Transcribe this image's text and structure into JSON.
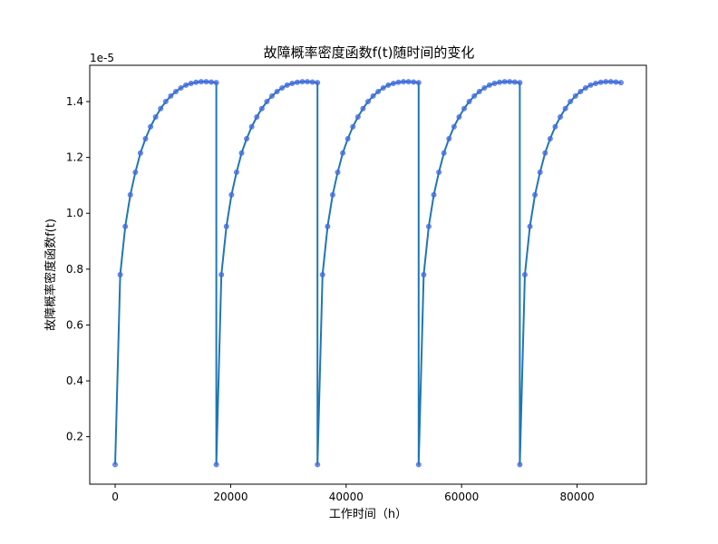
{
  "chart_data": {
    "type": "line",
    "title": "故障概率密度函数f(t)随时间的变化",
    "xlabel": "工作时间（h）",
    "ylabel": "故障概率密度函数f(t)",
    "offset_text": "1e-5",
    "xlim": [
      -4400,
      92000
    ],
    "ylim": [
      0.03,
      1.53
    ],
    "x_ticks": [
      0,
      20000,
      40000,
      60000,
      80000
    ],
    "x_tick_labels": [
      "0",
      "20000",
      "40000",
      "60000",
      "80000"
    ],
    "y_ticks": [
      0.2,
      0.4,
      0.6,
      0.8,
      1.0,
      1.2,
      1.4
    ],
    "y_tick_labels": [
      "0.2",
      "0.4",
      "0.6",
      "0.8",
      "1.0",
      "1.2",
      "1.4"
    ],
    "grid": false,
    "line_color": "#1f77b4",
    "marker_color": "#4169e1",
    "cycles": [
      {
        "x": [
          0,
          876,
          1752,
          2628,
          3504,
          4380,
          5256,
          6132,
          7008,
          7884,
          8760,
          9636,
          10512,
          11388,
          12264,
          13140,
          14016,
          14892,
          15768,
          16644,
          17520
        ],
        "y": [
          0.1,
          0.78,
          0.953,
          1.066,
          1.147,
          1.216,
          1.267,
          1.31,
          1.345,
          1.375,
          1.4,
          1.42,
          1.436,
          1.449,
          1.459,
          1.465,
          1.469,
          1.471,
          1.471,
          1.47,
          1.468
        ]
      },
      {
        "x": [
          17520,
          18396,
          19272,
          20148,
          21024,
          21900,
          22776,
          23652,
          24528,
          25404,
          26280,
          27156,
          28032,
          28908,
          29784,
          30660,
          31536,
          32412,
          33288,
          34164,
          35040
        ],
        "y": [
          0.1,
          0.78,
          0.953,
          1.066,
          1.147,
          1.216,
          1.267,
          1.31,
          1.345,
          1.375,
          1.4,
          1.42,
          1.436,
          1.449,
          1.459,
          1.465,
          1.469,
          1.471,
          1.471,
          1.47,
          1.468
        ]
      },
      {
        "x": [
          35040,
          35916,
          36792,
          37668,
          38544,
          39420,
          40296,
          41172,
          42048,
          42924,
          43800,
          44676,
          45552,
          46428,
          47304,
          48180,
          49056,
          49932,
          50808,
          51684,
          52560
        ],
        "y": [
          0.1,
          0.78,
          0.953,
          1.066,
          1.147,
          1.216,
          1.267,
          1.31,
          1.345,
          1.375,
          1.4,
          1.42,
          1.436,
          1.449,
          1.459,
          1.465,
          1.469,
          1.471,
          1.471,
          1.47,
          1.468
        ]
      },
      {
        "x": [
          52560,
          53436,
          54312,
          55188,
          56064,
          56940,
          57816,
          58692,
          59568,
          60444,
          61320,
          62196,
          63072,
          63948,
          64824,
          65700,
          66576,
          67452,
          68328,
          69204,
          70080
        ],
        "y": [
          0.1,
          0.78,
          0.953,
          1.066,
          1.147,
          1.216,
          1.267,
          1.31,
          1.345,
          1.375,
          1.4,
          1.42,
          1.436,
          1.449,
          1.459,
          1.465,
          1.469,
          1.471,
          1.471,
          1.47,
          1.468
        ]
      },
      {
        "x": [
          70080,
          70956,
          71832,
          72708,
          73584,
          74460,
          75336,
          76212,
          77088,
          77964,
          78840,
          79716,
          80592,
          81468,
          82344,
          83220,
          84096,
          84972,
          85848,
          86724,
          87600
        ],
        "y": [
          0.1,
          0.78,
          0.953,
          1.066,
          1.147,
          1.216,
          1.267,
          1.31,
          1.345,
          1.375,
          1.4,
          1.42,
          1.436,
          1.449,
          1.459,
          1.465,
          1.469,
          1.471,
          1.471,
          1.47,
          1.468
        ]
      }
    ]
  }
}
